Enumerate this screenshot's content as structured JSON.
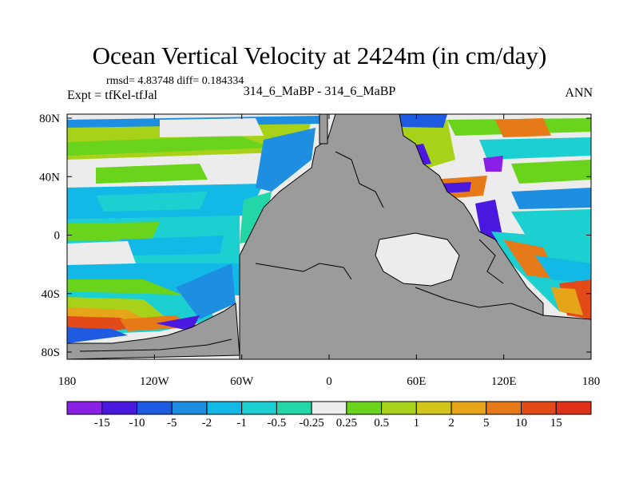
{
  "header": {
    "title": "Ocean Vertical Velocity at 2424m (in cm/day)",
    "stats": "rmsd= 4.83748 diff= 0.184334",
    "expt": "Expt = tfKel-tfJal",
    "subtitle": "314_6_MaBP - 314_6_MaBP",
    "season": "ANN"
  },
  "axes": {
    "longitude_labels": [
      "180",
      "120W",
      "60W",
      "0",
      "60E",
      "120E",
      "180"
    ],
    "latitude_labels": [
      "80N",
      "40N",
      "0",
      "40S",
      "80S"
    ]
  },
  "colorbar": {
    "labels": [
      "-15",
      "-10",
      "-5",
      "-2",
      "-1",
      "-0.5",
      "-0.25",
      "0.25",
      "0.5",
      "1",
      "2",
      "5",
      "10",
      "15"
    ],
    "colors": [
      "#8a1fe6",
      "#4b18e0",
      "#1f5be0",
      "#1e8fe0",
      "#12b8e6",
      "#1ccfd0",
      "#22d6a8",
      "#ececec",
      "#6ad31c",
      "#a8d21a",
      "#d2c61a",
      "#e6a519",
      "#e67a18",
      "#e24a18",
      "#e0301a"
    ]
  },
  "map": {
    "land_color": "#9b9b9b",
    "no_change_color": "#ececec"
  }
}
